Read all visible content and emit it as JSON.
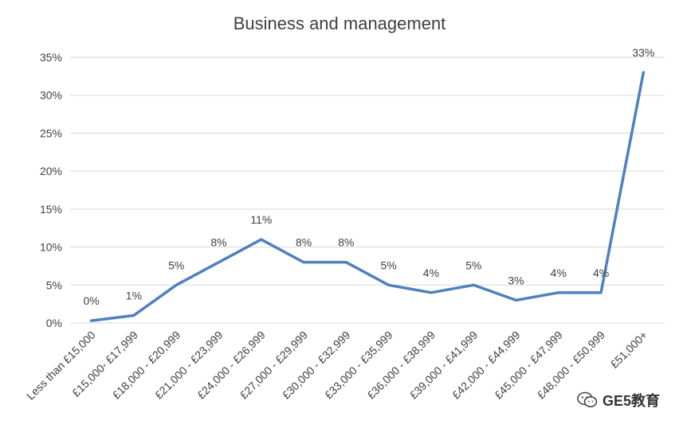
{
  "chart_data": {
    "type": "line",
    "title": "Business and management",
    "xlabel": "",
    "ylabel": "",
    "ylim": [
      0,
      35
    ],
    "yticks": [
      "0%",
      "5%",
      "10%",
      "15%",
      "20%",
      "25%",
      "30%",
      "35%"
    ],
    "grid": true,
    "legend": "none",
    "categories": [
      "Less than £15,000",
      "£15,000- £17,999",
      "£18,000 - £20,999",
      "£21,000 - £23,999",
      "£24,000 - £26,999",
      "£27,000 - £29,999",
      "£30,000 - £32,999",
      "£33,000 - £35,999",
      "£36,000 - £38,999",
      "£39,000 - £41,999",
      "£42,000 - £44,999",
      "£45,000 - £47,999",
      "£48,000 - £50,999",
      "£51,000+"
    ],
    "series": [
      {
        "values": [
          0.3,
          1,
          5,
          8,
          11,
          8,
          8,
          5,
          4,
          5,
          3,
          4,
          4,
          33
        ],
        "labels": [
          "0%",
          "1%",
          "5%",
          "8%",
          "11%",
          "8%",
          "8%",
          "5%",
          "4%",
          "5%",
          "3%",
          "4%",
          "4%",
          "33%"
        ],
        "color": "#4f81bd"
      }
    ]
  },
  "watermark": {
    "text": "GE5教育",
    "icon": "wechat-icon"
  }
}
